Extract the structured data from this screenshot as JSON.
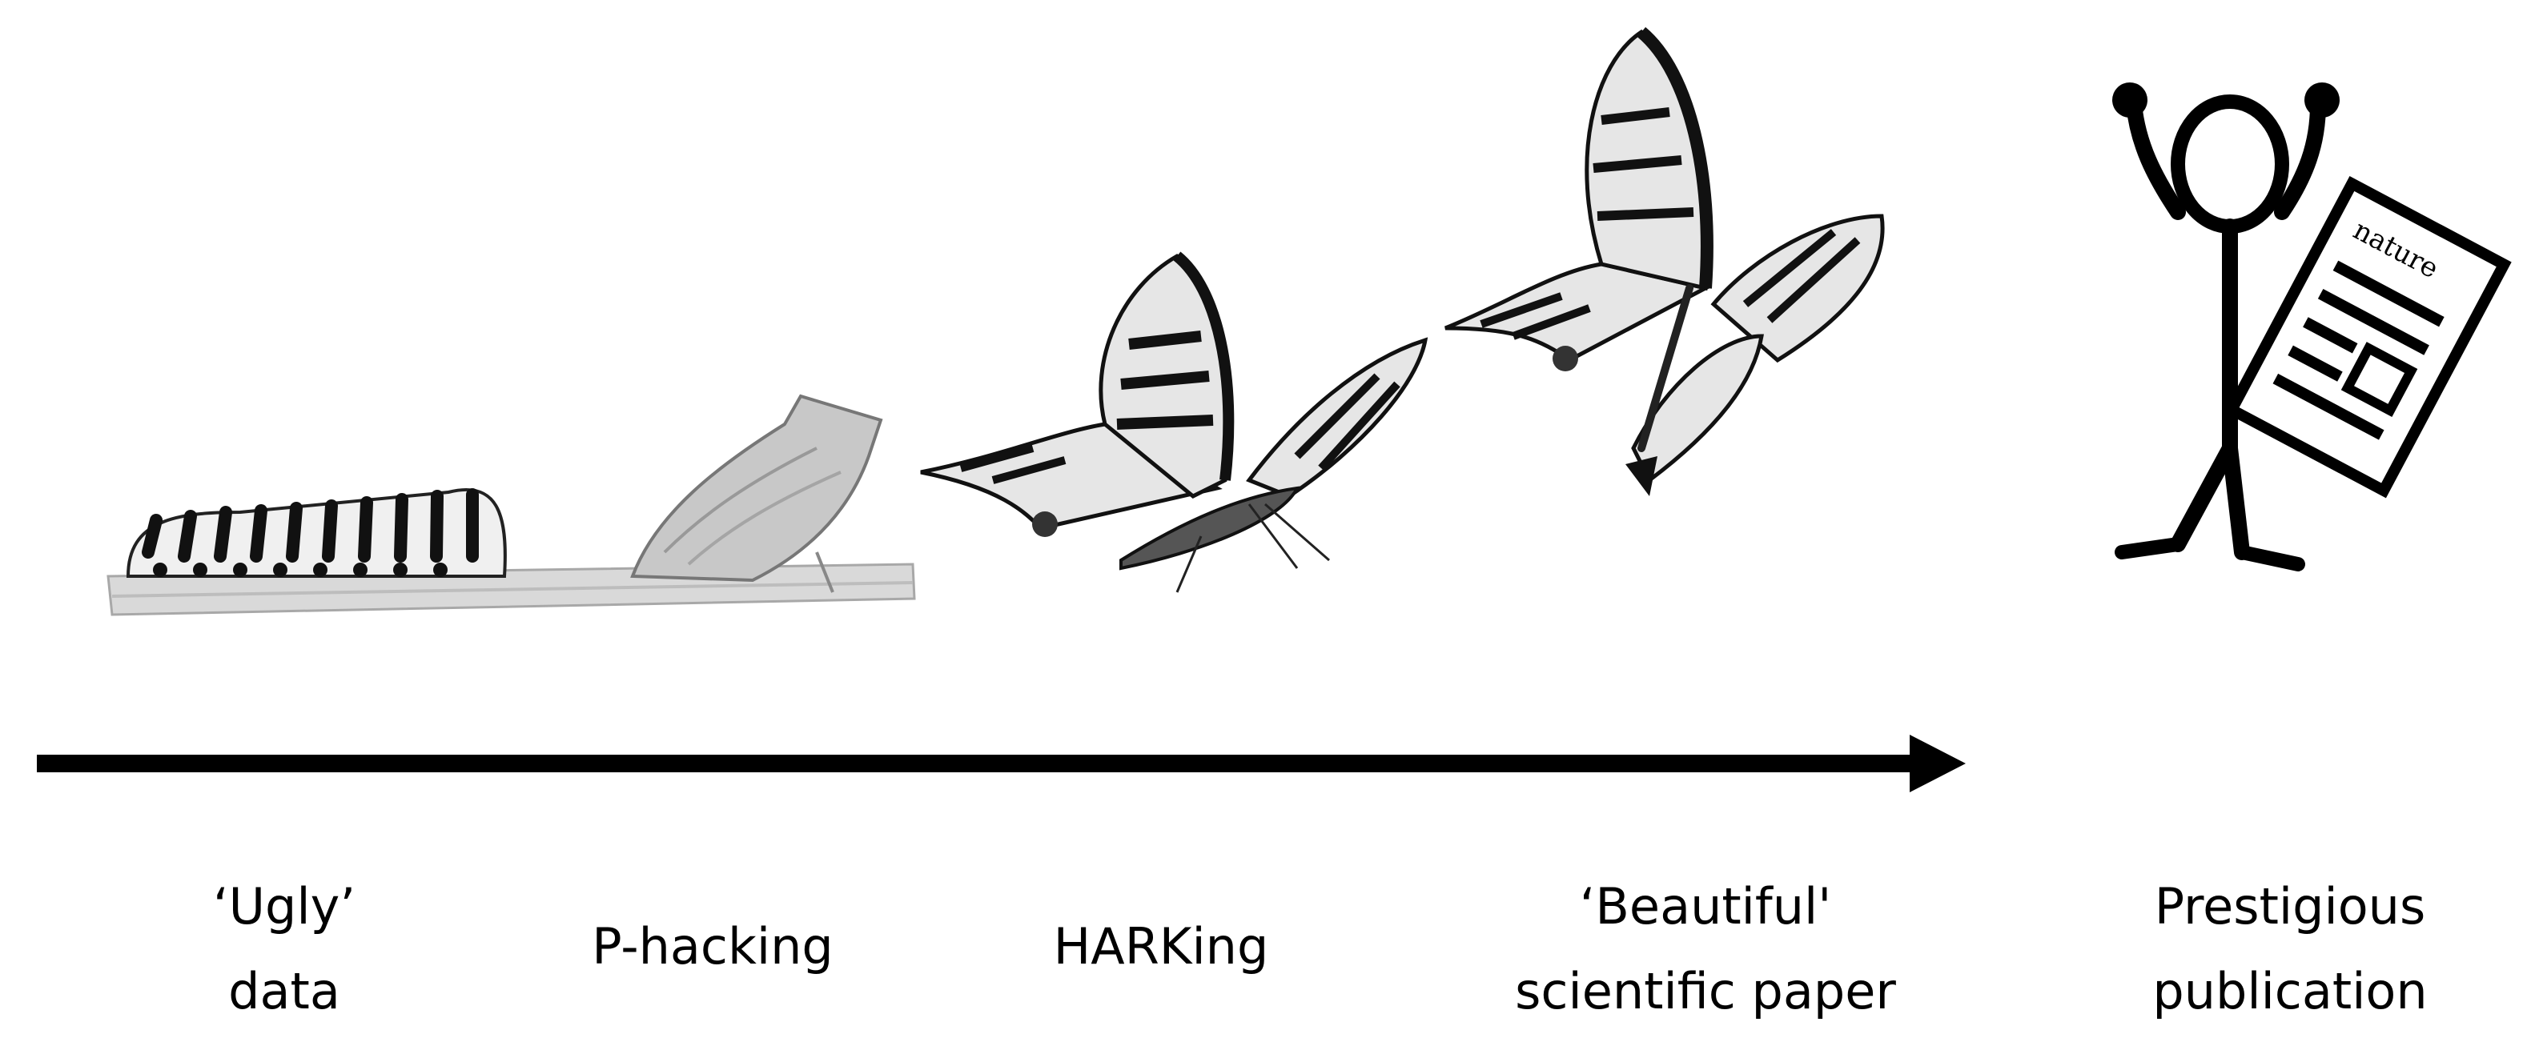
{
  "stages": [
    {
      "id": "ugly-data",
      "lines": [
        "‘Ugly’",
        "data"
      ],
      "icon": "caterpillar-icon"
    },
    {
      "id": "p-hacking",
      "lines": [
        "P-hacking"
      ],
      "icon": "chrysalis-icon"
    },
    {
      "id": "harking",
      "lines": [
        "HARKing"
      ],
      "icon": "emerging-butterfly-icon"
    },
    {
      "id": "beautiful-paper",
      "lines": [
        "‘Beautiful'",
        "scientific paper"
      ],
      "icon": "butterfly-icon"
    },
    {
      "id": "prestigious-publication",
      "lines": [
        "Prestigious",
        "publication"
      ],
      "icon": "stick-figure-icon"
    }
  ],
  "journal_name": "nature",
  "colors": {
    "ink": "#000000",
    "wing_light": "#e6e6e6",
    "wing_dark": "#1a1a1a",
    "twig": "#d4d4d4"
  }
}
